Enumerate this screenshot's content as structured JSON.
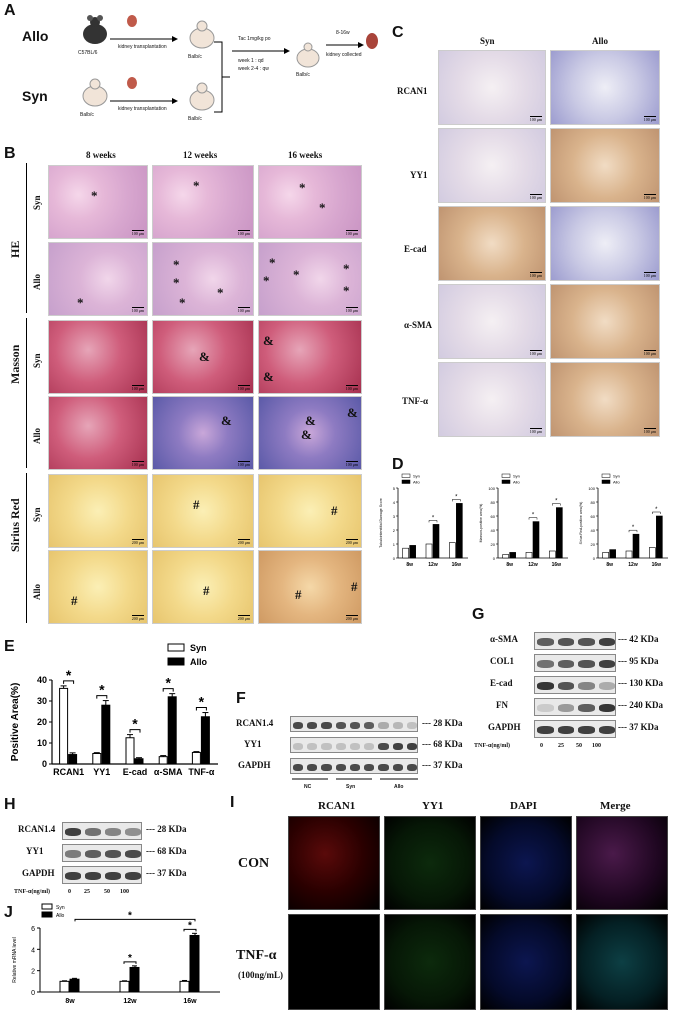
{
  "panels": {
    "A": "A",
    "B": "B",
    "C": "C",
    "D": "D",
    "E": "E",
    "F": "F",
    "G": "G",
    "H": "H",
    "I": "I",
    "J": "J"
  },
  "panelA": {
    "allo": "Allo",
    "syn": "Syn",
    "strain_c57": "C57BL/6",
    "strain_balbc": "Balb/c",
    "kt": "kidney transplantation",
    "tac": "Tac 1mg/kg po",
    "week1": "week   1 : qd",
    "week24": "week  2-4 : qw",
    "range": "8-16w",
    "collected": "kidney collected"
  },
  "panelB": {
    "col1": "8 weeks",
    "col2": "12 weeks",
    "col3": "16 weeks",
    "he": "HE",
    "masson": "Masson",
    "sirius": "Sirius Red",
    "syn": "Syn",
    "allo": "Allo",
    "scale100": "100 μm",
    "scale200": "200 μm",
    "star": "*",
    "amp": "&",
    "hash": "#"
  },
  "panelC": {
    "syn": "Syn",
    "allo": "Allo",
    "rows": [
      "RCAN1",
      "YY1",
      "E-cad",
      "α-SMA",
      "TNF-α"
    ],
    "scale": "100 μm"
  },
  "panelD": {
    "legend": [
      "Syn",
      "Allo"
    ],
    "charts": [
      {
        "ylabel": "Tubulointerstitial Damage Score",
        "yticks": [
          "0",
          "1",
          "2",
          "3",
          "4",
          "5"
        ],
        "ymax": 5,
        "syn": [
          0.7,
          1.0,
          1.1
        ],
        "allo": [
          0.9,
          2.4,
          3.9
        ]
      },
      {
        "ylabel": "Masson-positive area(%)",
        "yticks": [
          "0",
          "20",
          "40",
          "60",
          "80",
          "100"
        ],
        "ymax": 100,
        "syn": [
          5,
          8,
          10
        ],
        "allo": [
          8,
          52,
          72
        ]
      },
      {
        "ylabel": "Sirius Red-positive area(%)",
        "yticks": [
          "0",
          "20",
          "40",
          "60",
          "80",
          "100"
        ],
        "ymax": 100,
        "syn": [
          8,
          10,
          15
        ],
        "allo": [
          12,
          34,
          60
        ]
      }
    ],
    "xcats": [
      "8w",
      "12w",
      "16w"
    ],
    "star": "*"
  },
  "chart_data": [
    {
      "type": "bar",
      "panel": "E",
      "categories": [
        "RCAN1",
        "YY1",
        "E-cad",
        "α-SMA",
        "TNF-α"
      ],
      "series": [
        {
          "name": "Syn",
          "values": [
            36,
            5,
            12.5,
            3.5,
            5.5
          ],
          "errors": [
            1.2,
            0.4,
            1.5,
            0.5,
            0.4
          ]
        },
        {
          "name": "Allo",
          "values": [
            4.5,
            28,
            2.5,
            32,
            22.5
          ],
          "errors": [
            0.8,
            2.2,
            0.5,
            1.5,
            2.0
          ]
        }
      ],
      "ylabel": "Positive Area(%)",
      "yticks": [
        "0",
        "10",
        "20",
        "30",
        "40"
      ],
      "ylim": [
        0,
        40
      ],
      "star": "*"
    },
    {
      "type": "bar",
      "panel": "J",
      "categories": [
        "8w",
        "12w",
        "16w"
      ],
      "series": [
        {
          "name": "Syn",
          "values": [
            1.0,
            1.0,
            1.0
          ],
          "errors": [
            0.05,
            0.05,
            0.08
          ]
        },
        {
          "name": "Allo",
          "values": [
            1.2,
            2.3,
            5.3
          ],
          "errors": [
            0.08,
            0.15,
            0.2
          ]
        }
      ],
      "ylabel": "Relative mRNA level",
      "yticks": [
        "0",
        "2",
        "4",
        "6"
      ],
      "ylim": [
        0,
        6
      ],
      "star": "*"
    }
  ],
  "panelF": {
    "rows": [
      "RCAN1.4",
      "YY1",
      "GAPDH"
    ],
    "kda": [
      "--- 28 KDa",
      "--- 68 KDa",
      "--- 37 KDa"
    ],
    "groups": [
      "NC",
      "Syn",
      "Allo"
    ]
  },
  "panelG": {
    "rows": [
      "α-SMA",
      "COL1",
      "E-cad",
      "FN",
      "GAPDH"
    ],
    "kda": [
      "--- 42 KDa",
      "--- 95 KDa",
      "--- 130 KDa",
      "--- 240 KDa",
      "--- 37 KDa"
    ],
    "xlabel": "TNF-α(ng/ml)",
    "doses": [
      "0",
      "25",
      "50",
      "100"
    ]
  },
  "panelH": {
    "rows": [
      "RCAN1.4",
      "YY1",
      "GAPDH"
    ],
    "kda": [
      "--- 28 KDa",
      "--- 68 KDa",
      "--- 37 KDa"
    ],
    "xlabel": "TNF-α(ng/ml)",
    "doses": [
      "0",
      "25",
      "50",
      "100"
    ]
  },
  "panelI": {
    "cols": [
      "RCAN1",
      "YY1",
      "DAPI",
      "Merge"
    ],
    "con": "CON",
    "tnf": "TNF-α",
    "tnf_dose": "(100ng/mL)"
  }
}
